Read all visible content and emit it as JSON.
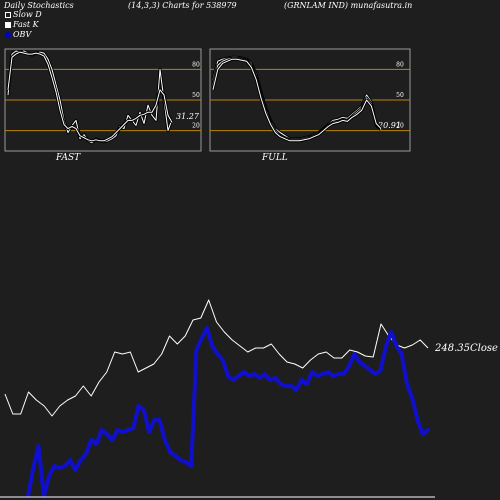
{
  "header": {
    "left": "Daily Stochastics",
    "middle": "(14,3,3) Charts for 538979",
    "right": "(GRNLAM IND) munafasutra.in"
  },
  "legend": [
    {
      "label": "Slow  D",
      "color": "#1e1e1e"
    },
    {
      "label": "Fast K",
      "color": "#ffffff"
    },
    {
      "label": "OBV",
      "color": "#0000cc"
    }
  ],
  "colors": {
    "background": "#1e1e1e",
    "price": "#ffffff",
    "obv": "#1010cc",
    "level_lines": "#b8860b",
    "panel_border": "#9a9a9a"
  },
  "chart_data": [
    {
      "type": "line",
      "panel": "fast",
      "title": "FAST",
      "ylim": [
        0,
        100
      ],
      "yticks": [
        20,
        50,
        80
      ],
      "reference_lines": [
        20,
        50,
        80
      ],
      "last_value_label": "31.27",
      "series": [
        {
          "values": [
            55,
            95,
            98,
            97,
            98,
            96,
            94,
            96,
            97,
            96,
            90,
            80,
            65,
            50,
            30,
            18,
            25,
            30,
            12,
            16,
            10,
            8,
            12,
            10,
            9,
            10,
            12,
            15,
            24,
            22,
            35,
            30,
            25,
            38,
            27,
            45,
            35,
            30,
            80,
            50,
            20,
            31
          ]
        },
        {
          "values": [
            60,
            92,
            95,
            97,
            96,
            95,
            95,
            96,
            95,
            93,
            85,
            72,
            58,
            40,
            26,
            22,
            24,
            22,
            15,
            13,
            11,
            10,
            11,
            10,
            10,
            12,
            14,
            18,
            22,
            26,
            30,
            30,
            32,
            35,
            36,
            38,
            38,
            45,
            60,
            55,
            35,
            28
          ]
        }
      ]
    },
    {
      "type": "line",
      "panel": "full",
      "title": "FULL",
      "ylim": [
        0,
        100
      ],
      "yticks": [
        20,
        50,
        80
      ],
      "reference_lines": [
        20,
        50,
        80
      ],
      "last_value_label": "20.91",
      "series": [
        {
          "values": [
            70,
            88,
            90,
            91,
            92,
            92,
            91,
            90,
            86,
            75,
            58,
            42,
            30,
            22,
            18,
            15,
            12,
            12,
            12,
            13,
            14,
            16,
            18,
            22,
            26,
            30,
            31,
            33,
            32,
            36,
            40,
            44,
            55,
            48,
            25,
            21
          ]
        },
        {
          "values": [
            65,
            84,
            88,
            90,
            91,
            91,
            90,
            89,
            84,
            72,
            55,
            40,
            28,
            20,
            15,
            13,
            11,
            11,
            11,
            12,
            13,
            15,
            17,
            21,
            25,
            28,
            29,
            31,
            30,
            34,
            38,
            42,
            52,
            46,
            26,
            21
          ]
        },
        {
          "values": [
            60,
            80,
            86,
            88,
            90,
            90,
            89,
            88,
            82,
            70,
            52,
            37,
            26,
            18,
            14,
            12,
            10,
            10,
            10,
            11,
            12,
            14,
            16,
            20,
            24,
            27,
            28,
            30,
            29,
            33,
            36,
            40,
            50,
            44,
            27,
            22
          ]
        }
      ]
    },
    {
      "type": "line",
      "panel": "price",
      "last_value_label": "248.35",
      "last_value_suffix": "Close",
      "series": [
        {
          "name": "Close",
          "values": [
            394,
            414,
            414,
            392,
            400,
            406,
            416,
            406,
            400,
            396,
            386,
            396,
            382,
            372,
            352,
            354,
            352,
            372,
            368,
            364,
            354,
            336,
            344,
            336,
            320,
            318,
            300,
            322,
            332,
            340,
            346,
            352,
            348,
            348,
            344,
            354,
            362,
            364,
            368,
            360,
            354,
            352,
            358,
            358,
            350,
            352,
            356,
            357,
            324,
            336,
            345,
            348,
            345,
            340,
            348
          ]
        },
        {
          "name": "OBV",
          "values": [
            496,
            468,
            446,
            496,
            476,
            466,
            468,
            466,
            460,
            470,
            460,
            454,
            440,
            444,
            430,
            434,
            440,
            430,
            432,
            430,
            428,
            406,
            410,
            432,
            420,
            420,
            440,
            452,
            456,
            460,
            462,
            466,
            350,
            338,
            328,
            346,
            354,
            360,
            376,
            380,
            376,
            372,
            376,
            374,
            378,
            374,
            380,
            378,
            384,
            386,
            386,
            390,
            380,
            384,
            372,
            376,
            374,
            372,
            376,
            374,
            374,
            366,
            354,
            362,
            366,
            370,
            374,
            370,
            346,
            332,
            346,
            354,
            384,
            398,
            420,
            434,
            430
          ]
        }
      ]
    }
  ]
}
